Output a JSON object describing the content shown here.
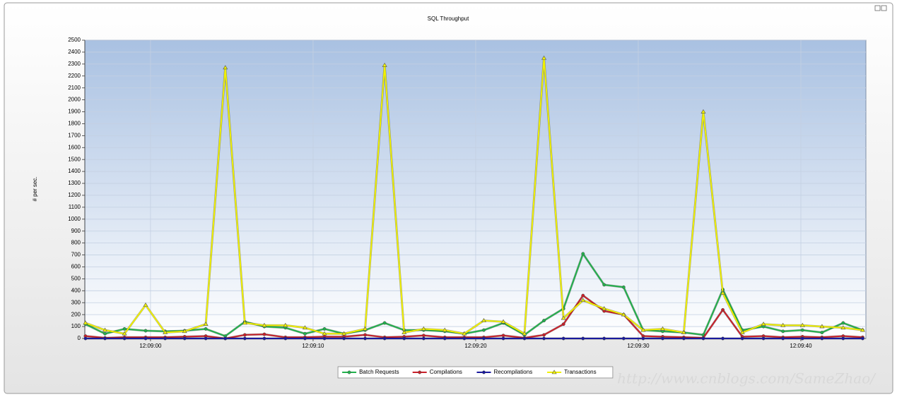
{
  "chart_data": {
    "type": "line",
    "title": "SQL Throughput",
    "y_label": "# per sec.",
    "watermark": "http://www.cnblogs.com/SameZhao/",
    "x": [
      -4.0,
      -2.8,
      -1.6,
      -0.3,
      0.9,
      2.1,
      3.4,
      4.6,
      5.8,
      7.0,
      8.3,
      9.5,
      10.7,
      11.9,
      13.2,
      14.4,
      15.6,
      16.8,
      18.1,
      19.3,
      20.5,
      21.7,
      23.0,
      24.2,
      25.4,
      26.6,
      27.9,
      29.1,
      30.3,
      31.5,
      32.8,
      34.0,
      35.2,
      36.4,
      37.7,
      38.9,
      40.1,
      41.3,
      42.6,
      43.8
    ],
    "xlim": [
      -4.04,
      44
    ],
    "xticks": [
      {
        "value": 0,
        "label": "12:09:00"
      },
      {
        "value": 10,
        "label": "12:09:10"
      },
      {
        "value": 20,
        "label": "12:09:20"
      },
      {
        "value": 30,
        "label": "12:09:30"
      },
      {
        "value": 40,
        "label": "12:09:40"
      }
    ],
    "ylim": [
      0,
      2500
    ],
    "yticks": [
      0,
      100,
      200,
      300,
      400,
      500,
      600,
      700,
      800,
      900,
      1000,
      1100,
      1200,
      1300,
      1400,
      1500,
      1600,
      1700,
      1800,
      1900,
      2000,
      2100,
      2200,
      2300,
      2400,
      2500
    ],
    "grid": true,
    "legend": "bottom",
    "series": [
      {
        "name": "Batch Requests",
        "color": "#22b14c",
        "values": [
          120,
          40,
          80,
          65,
          60,
          65,
          80,
          20,
          140,
          100,
          90,
          40,
          80,
          40,
          70,
          130,
          70,
          70,
          60,
          40,
          70,
          130,
          30,
          150,
          250,
          710,
          450,
          430,
          70,
          60,
          50,
          30,
          410,
          70,
          100,
          60,
          70,
          50,
          130,
          70
        ]
      },
      {
        "name": "Compilations",
        "color": "#c8202a",
        "values": [
          20,
          5,
          10,
          10,
          10,
          15,
          20,
          0,
          30,
          35,
          10,
          10,
          15,
          15,
          30,
          10,
          15,
          25,
          10,
          10,
          10,
          25,
          5,
          30,
          120,
          360,
          230,
          200,
          20,
          15,
          10,
          5,
          240,
          15,
          20,
          10,
          15,
          10,
          20,
          10
        ]
      },
      {
        "name": "Recompilations",
        "color": "#1a1a9e",
        "values": [
          0,
          0,
          0,
          0,
          0,
          0,
          0,
          0,
          0,
          0,
          0,
          0,
          0,
          0,
          0,
          0,
          0,
          0,
          0,
          0,
          0,
          0,
          0,
          0,
          0,
          0,
          0,
          0,
          0,
          0,
          0,
          0,
          0,
          0,
          0,
          0,
          0,
          0,
          0,
          0
        ]
      },
      {
        "name": "Transactions",
        "color": "#f0f000",
        "values": [
          130,
          70,
          40,
          280,
          50,
          60,
          120,
          2270,
          130,
          110,
          110,
          90,
          40,
          40,
          80,
          2290,
          50,
          80,
          70,
          40,
          150,
          140,
          40,
          2350,
          170,
          320,
          250,
          200,
          70,
          80,
          50,
          1900,
          380,
          50,
          120,
          110,
          110,
          100,
          90,
          70
        ]
      }
    ]
  }
}
